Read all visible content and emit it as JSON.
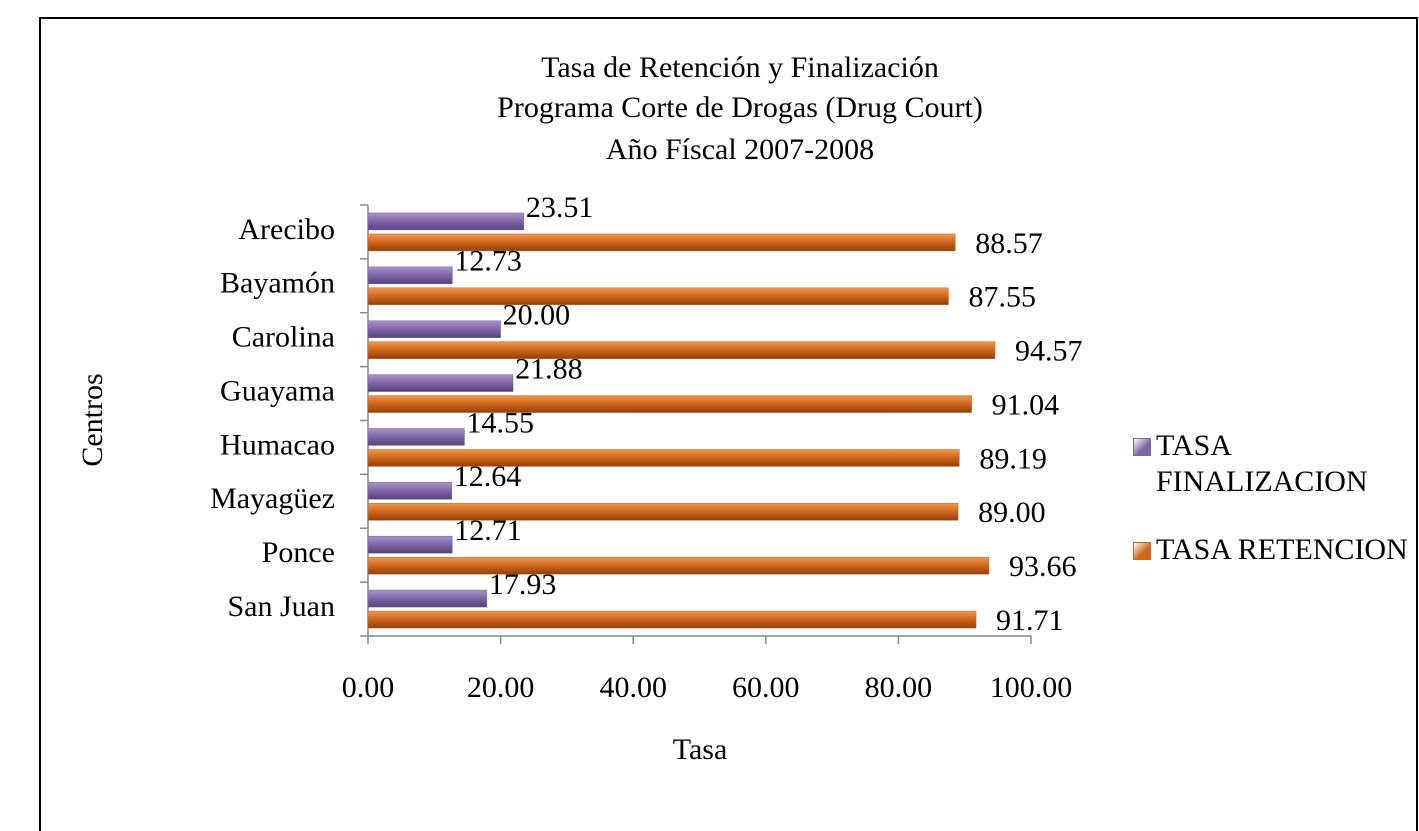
{
  "chart_data": {
    "type": "bar",
    "orientation": "horizontal",
    "title": [
      "Tasa de Retención y Finalización",
      "Programa Corte de Drogas (Drug Court)",
      "Año Físcal 2007-2008"
    ],
    "x_label": "Tasa",
    "y_label": "Centros",
    "categories": [
      "Arecibo",
      "Bayamón",
      "Carolina",
      "Guayama",
      "Humacao",
      "Mayagüez",
      "Ponce",
      "San Juan"
    ],
    "series": [
      {
        "name": "TASA FINALIZACION",
        "color": "#7f66a8",
        "values": [
          23.51,
          12.73,
          20.0,
          21.88,
          14.55,
          12.64,
          12.71,
          17.93
        ],
        "value_labels": [
          "23.51",
          "12.73",
          "20.00",
          "21.88",
          "14.55",
          "12.64",
          "12.71",
          "17.93"
        ]
      },
      {
        "name": "TASA RETENCION",
        "color": "#d0661c",
        "values": [
          88.57,
          87.55,
          94.57,
          91.04,
          89.19,
          89.0,
          93.66,
          91.71
        ],
        "value_labels": [
          "88.57",
          "87.55",
          "94.57",
          "91.04",
          "89.19",
          "89.00",
          "93.66",
          "91.71"
        ]
      }
    ],
    "xlim": [
      0,
      100
    ],
    "xticks": [
      {
        "value": 0,
        "label": "0.00"
      },
      {
        "value": 20,
        "label": "20.00"
      },
      {
        "value": 40,
        "label": "40.00"
      },
      {
        "value": 60,
        "label": "60.00"
      },
      {
        "value": 80,
        "label": "80.00"
      },
      {
        "value": 100,
        "label": "100.00"
      }
    ],
    "legend": "right"
  }
}
